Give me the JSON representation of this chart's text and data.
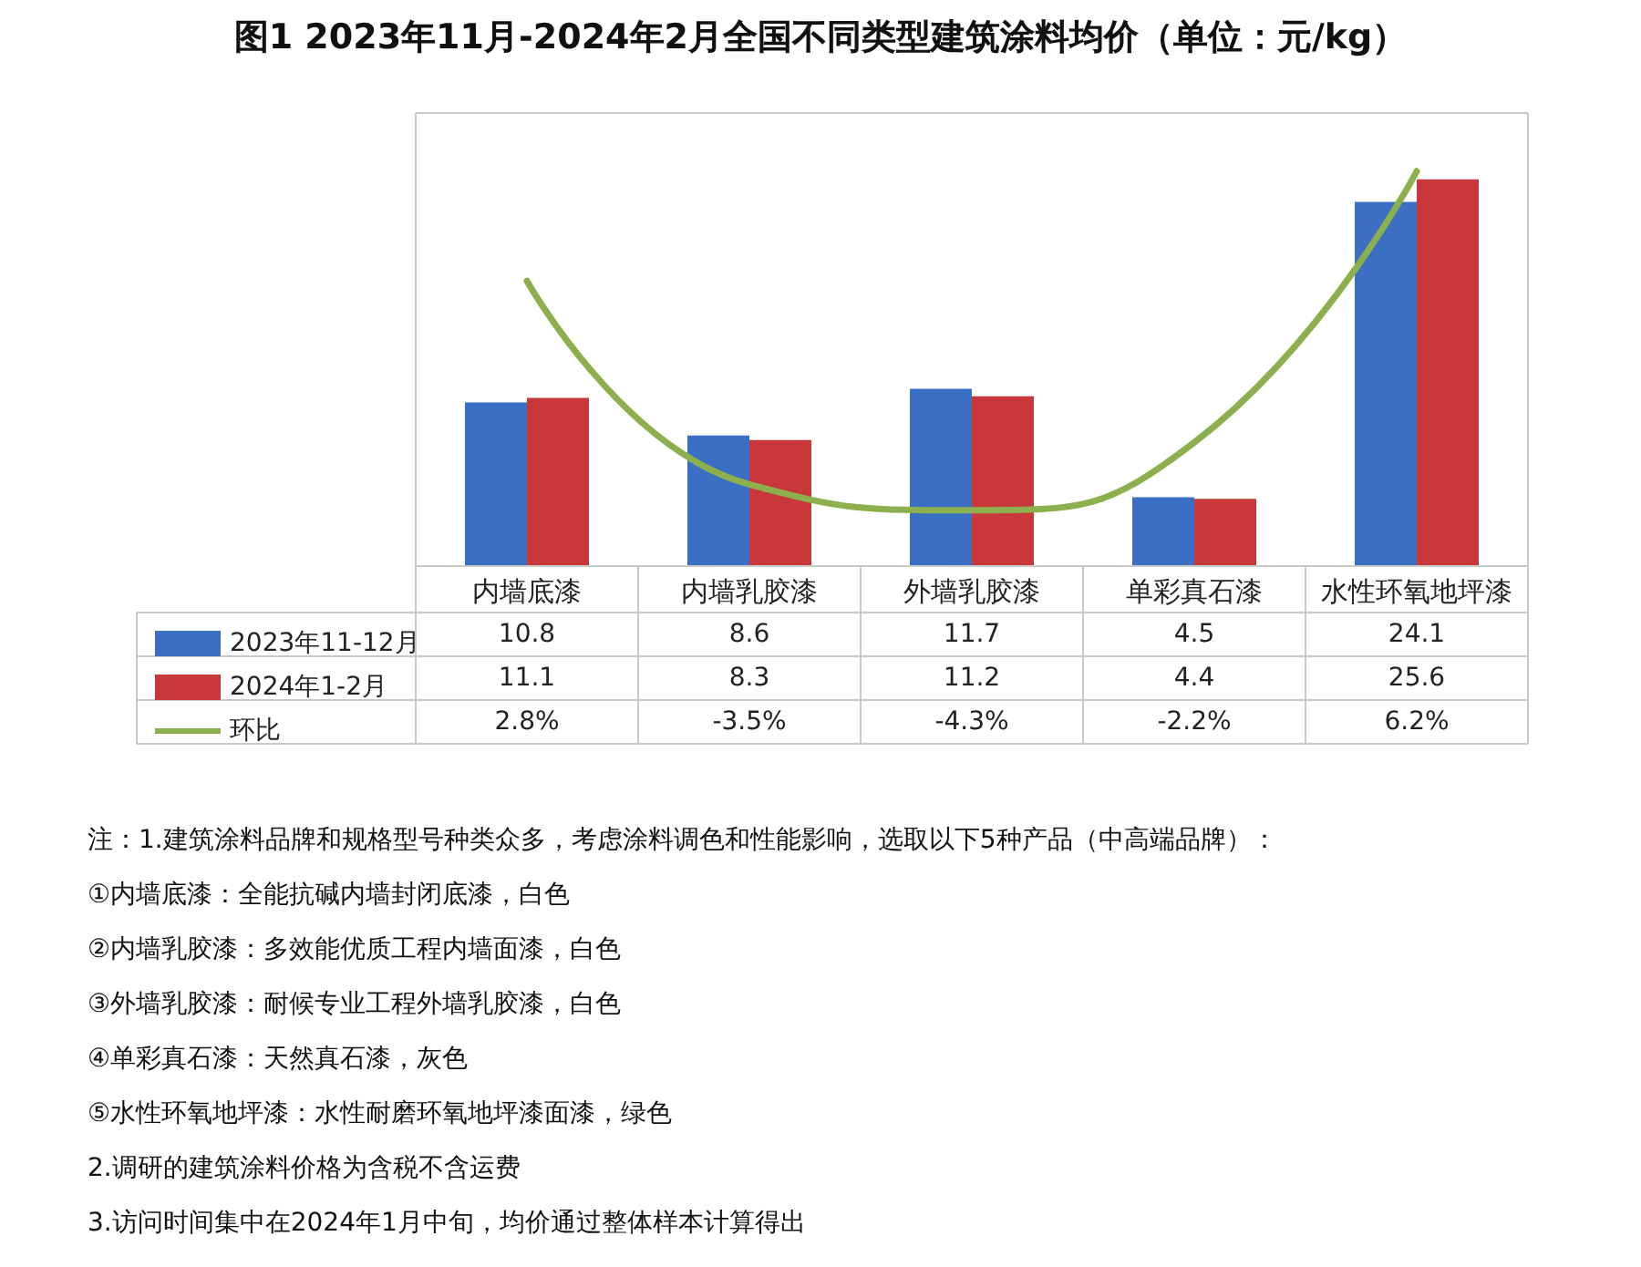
{
  "chart_data": {
    "type": "bar",
    "title": "图1 2023年11月-2024年2月全国不同类型建筑涂料均价（单位：元/kg）",
    "categories": [
      "内墙底漆",
      "内墙乳胶漆",
      "外墙乳胶漆",
      "单彩真石漆",
      "水性环氧地坪漆"
    ],
    "series": [
      {
        "name": "2023年11-12月",
        "color": "#3a6fc4",
        "values": [
          10.8,
          8.6,
          11.7,
          4.5,
          24.1
        ],
        "value_labels": [
          "10.8",
          "8.6",
          "11.7",
          "4.5",
          "24.1"
        ]
      },
      {
        "name": "2024年1-2月",
        "color": "#c8383a",
        "values": [
          11.1,
          8.3,
          11.2,
          4.4,
          25.6
        ],
        "value_labels": [
          "11.1",
          "8.3",
          "11.2",
          "4.4",
          "25.6"
        ]
      },
      {
        "name": "环比",
        "type": "line",
        "axis": "y2",
        "color": "#8db04e",
        "values": [
          2.8,
          -3.5,
          -4.3,
          -2.2,
          6.2
        ],
        "value_labels": [
          "2.8%",
          "-3.5%",
          "-4.3%",
          "-2.2%",
          "6.2%"
        ]
      }
    ],
    "legend": "bottom left",
    "marker": "none",
    "annotations": [
      "注：1.建筑涂料品牌和规格型号种类众多，考虑涂料调色和性能影响，选取以下5种产品（中高端品牌）：",
      "①内墙底漆：全能抗碱内墙封闭底漆，白色",
      "②内墙乳胶漆：多效能优质工程内墙面漆，白色",
      "③外墙乳胶漆：耐候专业工程外墙乳胶漆，白色",
      "④单彩真石漆：天然真石漆，灰色",
      "⑤水性环氧地坪漆：水性耐磨环氧地坪漆面漆，绿色",
      "2.调研的建筑涂料价格为含税不含运费",
      "3.访问时间集中在2024年1月中旬，均价通过整体样本计算得出"
    ]
  }
}
